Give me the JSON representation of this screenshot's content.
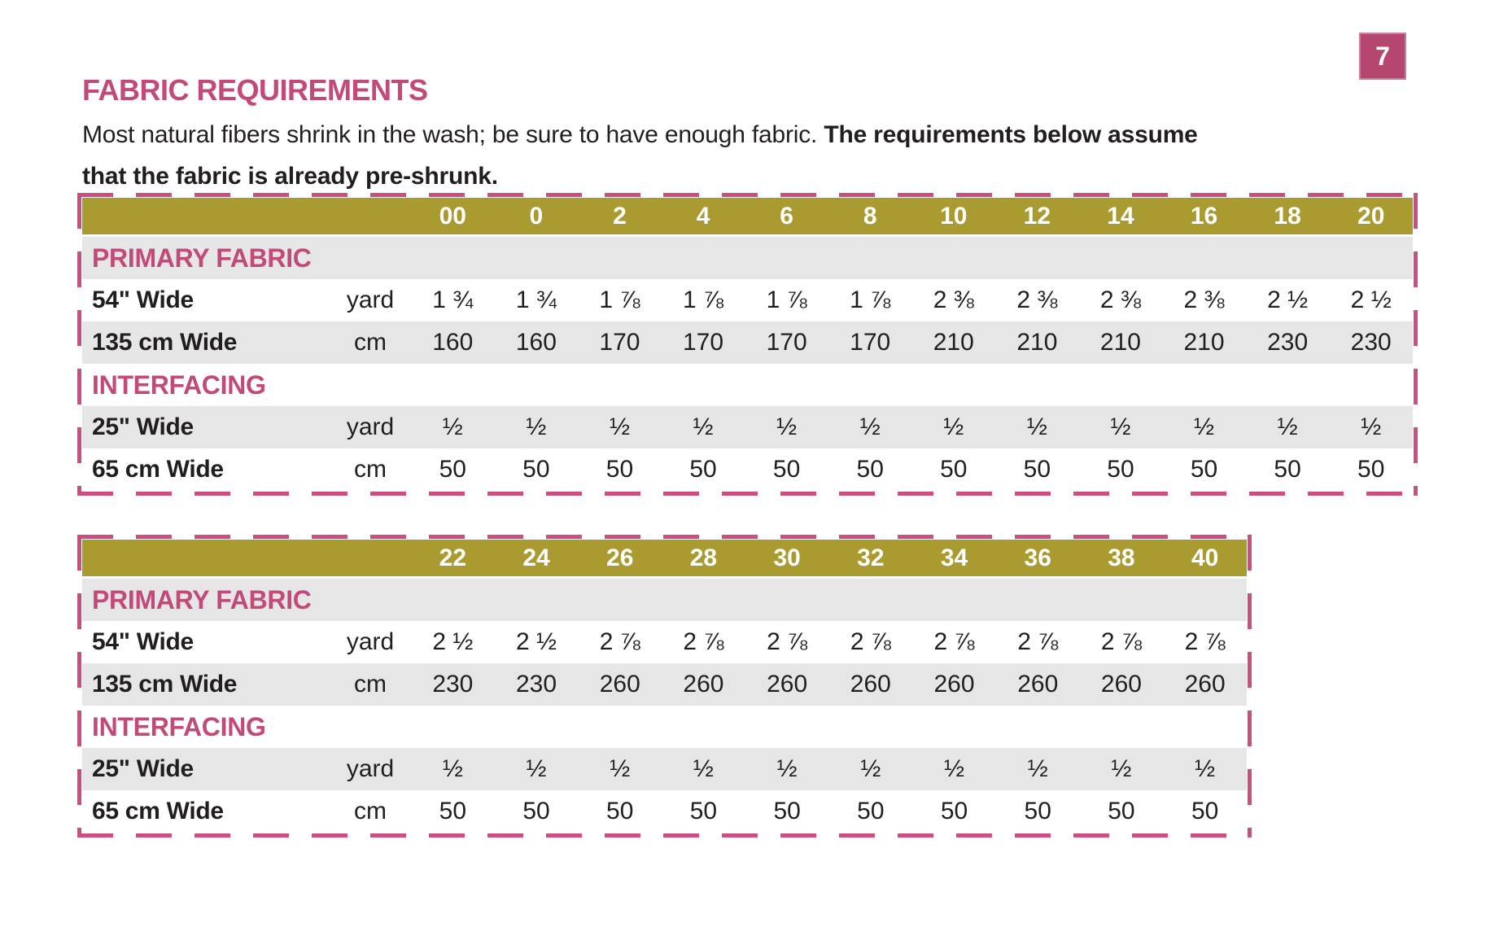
{
  "page": {
    "number": "7"
  },
  "title": "FABRIC REQUIREMENTS",
  "intro": {
    "normal": "Most natural fibers shrink in the wash; be sure to have enough fabric. ",
    "bold_1": "The requirements below assume",
    "bold_2": "that the fabric is already pre-shrunk."
  },
  "colors": {
    "brand_pink": "#c2497a",
    "dash_pink": "#cd4d80",
    "badge_pink": "#b5466f",
    "olive": "#a99b2f",
    "row_gray": "#e6e6e6",
    "ink": "#221e1f"
  },
  "tables": [
    {
      "sizes": [
        "00",
        "0",
        "2",
        "4",
        "6",
        "8",
        "10",
        "12",
        "14",
        "16",
        "18",
        "20"
      ],
      "sections": [
        {
          "label": "PRIMARY FABRIC",
          "rows": [
            {
              "label": "54\" Wide",
              "unit": "yard",
              "values": [
                "1 ¾",
                "1 ¾",
                "1 ⅞",
                "1 ⅞",
                "1 ⅞",
                "1 ⅞",
                "2 ⅜",
                "2 ⅜",
                "2 ⅜",
                "2 ⅜",
                "2 ½",
                "2 ½"
              ]
            },
            {
              "label": "135 cm Wide",
              "unit": "cm",
              "values": [
                "160",
                "160",
                "170",
                "170",
                "170",
                "170",
                "210",
                "210",
                "210",
                "210",
                "230",
                "230"
              ]
            }
          ]
        },
        {
          "label": "INTERFACING",
          "rows": [
            {
              "label": "25\" Wide",
              "unit": "yard",
              "values": [
                "½",
                "½",
                "½",
                "½",
                "½",
                "½",
                "½",
                "½",
                "½",
                "½",
                "½",
                "½"
              ]
            },
            {
              "label": "65 cm Wide",
              "unit": "cm",
              "values": [
                "50",
                "50",
                "50",
                "50",
                "50",
                "50",
                "50",
                "50",
                "50",
                "50",
                "50",
                "50"
              ]
            }
          ]
        }
      ]
    },
    {
      "sizes": [
        "22",
        "24",
        "26",
        "28",
        "30",
        "32",
        "34",
        "36",
        "38",
        "40"
      ],
      "sections": [
        {
          "label": "PRIMARY FABRIC",
          "rows": [
            {
              "label": "54\" Wide",
              "unit": "yard",
              "values": [
                "2 ½",
                "2 ½",
                "2 ⅞",
                "2 ⅞",
                "2 ⅞",
                "2 ⅞",
                "2 ⅞",
                "2 ⅞",
                "2 ⅞",
                "2 ⅞"
              ]
            },
            {
              "label": "135 cm Wide",
              "unit": "cm",
              "values": [
                "230",
                "230",
                "260",
                "260",
                "260",
                "260",
                "260",
                "260",
                "260",
                "260"
              ]
            }
          ]
        },
        {
          "label": "INTERFACING",
          "rows": [
            {
              "label": "25\" Wide",
              "unit": "yard",
              "values": [
                "½",
                "½",
                "½",
                "½",
                "½",
                "½",
                "½",
                "½",
                "½",
                "½"
              ]
            },
            {
              "label": "65 cm Wide",
              "unit": "cm",
              "values": [
                "50",
                "50",
                "50",
                "50",
                "50",
                "50",
                "50",
                "50",
                "50",
                "50"
              ]
            }
          ]
        }
      ]
    }
  ]
}
